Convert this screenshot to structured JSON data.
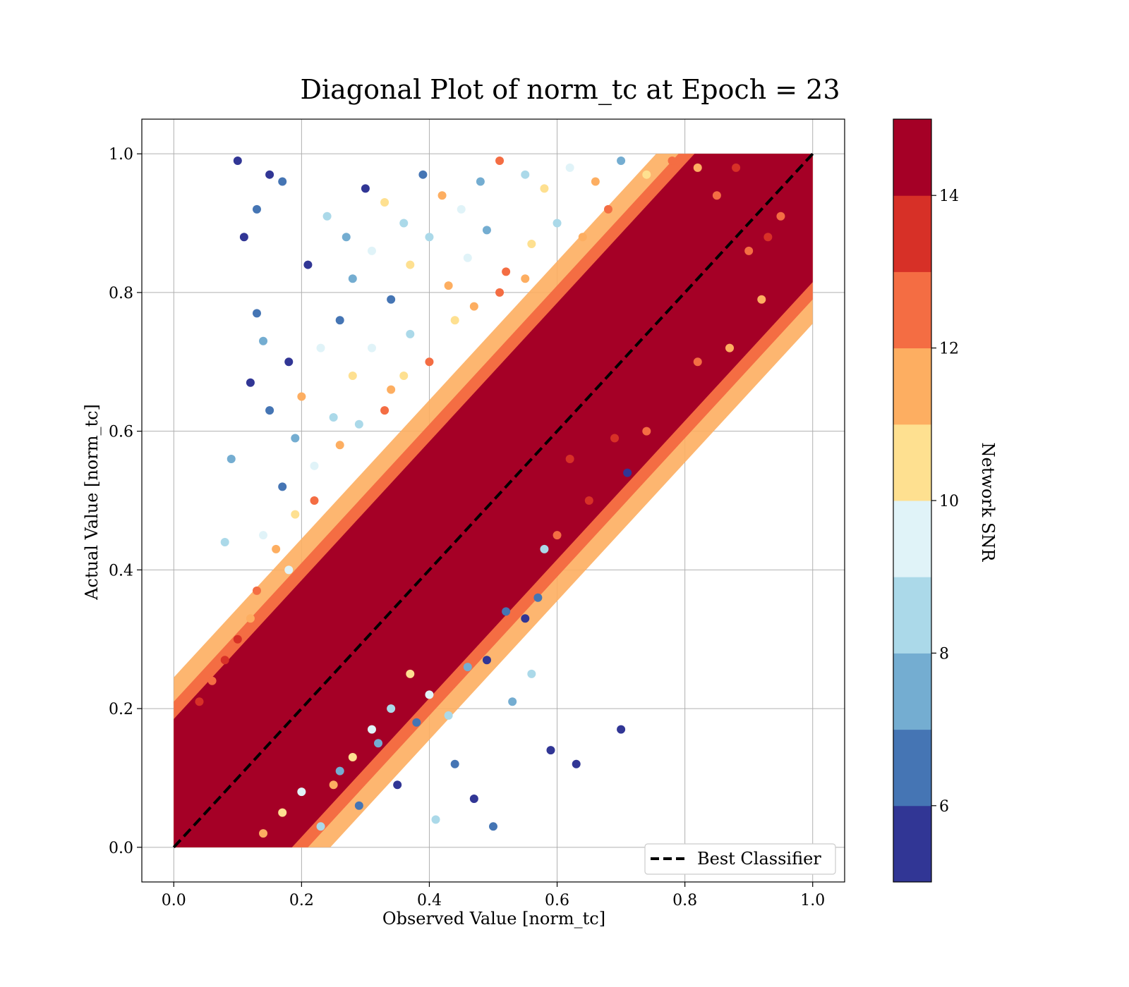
{
  "chart_data": {
    "type": "scatter",
    "title": "Diagonal Plot of norm_tc at Epoch = 23",
    "xlabel": "Observed Value [norm_tc]",
    "ylabel": "Actual Value [norm_tc]",
    "xlim": [
      -0.05,
      1.05
    ],
    "ylim": [
      -0.05,
      1.05
    ],
    "xticks": [
      "0.0",
      "0.2",
      "0.4",
      "0.6",
      "0.8",
      "1.0"
    ],
    "yticks": [
      "0.0",
      "0.2",
      "0.4",
      "0.6",
      "0.8",
      "1.0"
    ],
    "grid": true,
    "reference_line": {
      "label": "Best Classifier",
      "style": "dashed",
      "color": "#000000",
      "from": [
        0,
        0
      ],
      "to": [
        1,
        1
      ]
    },
    "legend": {
      "position": "lower-right",
      "entries": [
        "Best Classifier"
      ]
    },
    "colorbar": {
      "label": "Network SNR",
      "range": [
        5,
        15
      ],
      "ticks": [
        "6",
        "8",
        "10",
        "12",
        "14"
      ],
      "colors": [
        "#313695",
        "#4575b4",
        "#74add1",
        "#abd9e9",
        "#e0f3f8",
        "#fee090",
        "#fdae61",
        "#f46d43",
        "#d73027",
        "#a50026"
      ]
    },
    "points": [
      [
        0.1,
        0.99,
        5.2
      ],
      [
        0.15,
        0.97,
        5.5
      ],
      [
        0.17,
        0.96,
        6.1
      ],
      [
        0.13,
        0.92,
        6.5
      ],
      [
        0.11,
        0.88,
        5.8
      ],
      [
        0.13,
        0.77,
        6.8
      ],
      [
        0.14,
        0.73,
        7.2
      ],
      [
        0.12,
        0.67,
        5.3
      ],
      [
        0.15,
        0.63,
        6.2
      ],
      [
        0.09,
        0.56,
        7.0
      ],
      [
        0.08,
        0.44,
        8.5
      ],
      [
        0.14,
        0.45,
        9.5
      ],
      [
        0.18,
        0.7,
        5.4
      ],
      [
        0.19,
        0.59,
        7.8
      ],
      [
        0.17,
        0.52,
        6.1
      ],
      [
        0.2,
        0.65,
        11.5
      ],
      [
        0.23,
        0.72,
        9.2
      ],
      [
        0.26,
        0.76,
        6.4
      ],
      [
        0.21,
        0.84,
        5.6
      ],
      [
        0.24,
        0.91,
        8.2
      ],
      [
        0.27,
        0.88,
        7.6
      ],
      [
        0.3,
        0.95,
        5.9
      ],
      [
        0.33,
        0.93,
        10.5
      ],
      [
        0.36,
        0.9,
        8.8
      ],
      [
        0.39,
        0.97,
        6.3
      ],
      [
        0.42,
        0.94,
        11.2
      ],
      [
        0.45,
        0.92,
        9.4
      ],
      [
        0.48,
        0.96,
        7.1
      ],
      [
        0.51,
        0.99,
        12.4
      ],
      [
        0.55,
        0.97,
        8.6
      ],
      [
        0.58,
        0.95,
        10.8
      ],
      [
        0.62,
        0.98,
        9.9
      ],
      [
        0.66,
        0.96,
        11.8
      ],
      [
        0.7,
        0.99,
        7.4
      ],
      [
        0.74,
        0.97,
        10.1
      ],
      [
        0.78,
        0.99,
        12.2
      ],
      [
        0.82,
        0.98,
        11.4
      ],
      [
        0.28,
        0.82,
        7.9
      ],
      [
        0.31,
        0.86,
        9.1
      ],
      [
        0.34,
        0.79,
        6.7
      ],
      [
        0.37,
        0.84,
        10.3
      ],
      [
        0.4,
        0.88,
        8.4
      ],
      [
        0.43,
        0.81,
        11.1
      ],
      [
        0.46,
        0.85,
        9.6
      ],
      [
        0.49,
        0.89,
        7.3
      ],
      [
        0.52,
        0.83,
        12.1
      ],
      [
        0.56,
        0.87,
        10.2
      ],
      [
        0.6,
        0.9,
        8.9
      ],
      [
        0.64,
        0.88,
        11.9
      ],
      [
        0.68,
        0.92,
        12.6
      ],
      [
        0.25,
        0.62,
        8.3
      ],
      [
        0.28,
        0.68,
        10.4
      ],
      [
        0.31,
        0.72,
        9.3
      ],
      [
        0.34,
        0.66,
        11.6
      ],
      [
        0.37,
        0.74,
        8.7
      ],
      [
        0.4,
        0.7,
        12.3
      ],
      [
        0.44,
        0.76,
        10.6
      ],
      [
        0.47,
        0.78,
        11.3
      ],
      [
        0.51,
        0.8,
        12.7
      ],
      [
        0.55,
        0.82,
        11.7
      ],
      [
        0.22,
        0.55,
        9.7
      ],
      [
        0.26,
        0.58,
        11.4
      ],
      [
        0.29,
        0.61,
        8.1
      ],
      [
        0.33,
        0.63,
        12.5
      ],
      [
        0.36,
        0.68,
        10.9
      ],
      [
        0.19,
        0.48,
        10.7
      ],
      [
        0.22,
        0.5,
        12.2
      ],
      [
        0.16,
        0.43,
        11.5
      ],
      [
        0.18,
        0.4,
        9.8
      ],
      [
        0.13,
        0.37,
        12.4
      ],
      [
        0.1,
        0.3,
        13.0
      ],
      [
        0.12,
        0.33,
        11.9
      ],
      [
        0.08,
        0.27,
        13.6
      ],
      [
        0.06,
        0.24,
        12.8
      ],
      [
        0.04,
        0.21,
        13.2
      ],
      [
        0.14,
        0.02,
        11.2
      ],
      [
        0.17,
        0.05,
        10.3
      ],
      [
        0.2,
        0.08,
        9.1
      ],
      [
        0.23,
        0.03,
        8.4
      ],
      [
        0.26,
        0.11,
        7.5
      ],
      [
        0.29,
        0.06,
        6.6
      ],
      [
        0.32,
        0.15,
        7.8
      ],
      [
        0.35,
        0.09,
        5.7
      ],
      [
        0.38,
        0.18,
        6.9
      ],
      [
        0.41,
        0.04,
        8.2
      ],
      [
        0.44,
        0.12,
        6.1
      ],
      [
        0.47,
        0.07,
        5.4
      ],
      [
        0.5,
        0.03,
        6.4
      ],
      [
        0.53,
        0.21,
        7.2
      ],
      [
        0.56,
        0.25,
        8.5
      ],
      [
        0.59,
        0.14,
        5.3
      ],
      [
        0.63,
        0.12,
        5.6
      ],
      [
        0.7,
        0.17,
        5.2
      ],
      [
        0.49,
        0.27,
        5.9
      ],
      [
        0.52,
        0.34,
        6.3
      ],
      [
        0.55,
        0.33,
        5.5
      ],
      [
        0.57,
        0.36,
        6.8
      ],
      [
        0.46,
        0.26,
        7.4
      ],
      [
        0.43,
        0.19,
        8.7
      ],
      [
        0.4,
        0.22,
        9.5
      ],
      [
        0.37,
        0.25,
        10.2
      ],
      [
        0.34,
        0.2,
        8.9
      ],
      [
        0.31,
        0.17,
        9.8
      ],
      [
        0.28,
        0.13,
        10.6
      ],
      [
        0.25,
        0.09,
        11.3
      ],
      [
        0.85,
        0.94,
        12.9
      ],
      [
        0.88,
        0.98,
        13.1
      ],
      [
        0.9,
        0.86,
        12.7
      ],
      [
        0.93,
        0.88,
        13.4
      ],
      [
        0.95,
        0.91,
        12.6
      ],
      [
        0.92,
        0.79,
        11.8
      ],
      [
        0.87,
        0.72,
        11.5
      ],
      [
        0.82,
        0.7,
        12.3
      ],
      [
        0.74,
        0.6,
        12.8
      ],
      [
        0.69,
        0.59,
        13.3
      ],
      [
        0.71,
        0.54,
        5.3
      ],
      [
        0.65,
        0.5,
        13.1
      ],
      [
        0.6,
        0.45,
        12.2
      ],
      [
        0.58,
        0.43,
        8.1
      ],
      [
        0.62,
        0.56,
        13.5
      ]
    ]
  }
}
